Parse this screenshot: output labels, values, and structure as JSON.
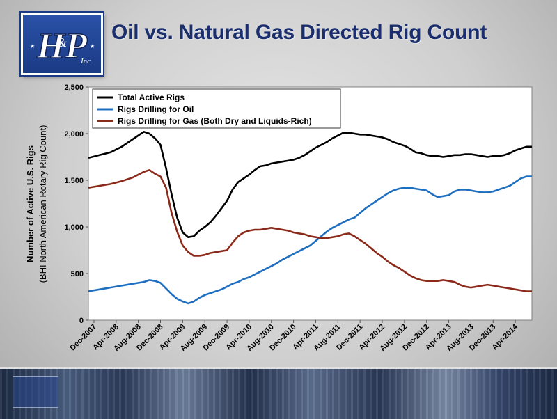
{
  "page": {
    "title": "Oil vs. Natural Gas Directed Rig Count"
  },
  "logo": {
    "text": "H&P Inc"
  },
  "colors": {
    "total": "#000000",
    "oil": "#1f6fc0",
    "gas": "#8b2a1a",
    "title": "#1b2f6e"
  },
  "chart_data": {
    "type": "line",
    "ylabel_line1": "Number of Active U.S. Rigs",
    "ylabel_line2": "(BHI North American Rotary Rig Count)",
    "ylim": [
      0,
      2500
    ],
    "yticks": [
      0,
      500,
      1000,
      1500,
      2000,
      2500
    ],
    "ytick_labels": [
      "0",
      "500",
      "1,000",
      "1,500",
      "2,000",
      "2,500"
    ],
    "x_tick_labels": [
      "Dec-2007",
      "Apr-2008",
      "Aug-2008",
      "Dec-2008",
      "Apr-2009",
      "Aug-2009",
      "Dec-2009",
      "Apr-2010",
      "Aug-2010",
      "Dec-2010",
      "Apr-2011",
      "Aug-2011",
      "Dec-2011",
      "Apr-2012",
      "Aug-2012",
      "Dec-2012",
      "Apr-2013",
      "Aug-2013",
      "Dec-2013",
      "Apr-2014"
    ],
    "xlim": [
      "2007-11",
      "2014-07"
    ],
    "grid": false,
    "legend_position": "top-left",
    "series": [
      {
        "name": "Total Active Rigs",
        "x": [
          "2007-11",
          "2008-01",
          "2008-03",
          "2008-05",
          "2008-07",
          "2008-09",
          "2008-10",
          "2008-11",
          "2008-12",
          "2009-01",
          "2009-02",
          "2009-03",
          "2009-04",
          "2009-05",
          "2009-06",
          "2009-07",
          "2009-08",
          "2009-09",
          "2009-10",
          "2009-11",
          "2009-12",
          "2010-01",
          "2010-02",
          "2010-03",
          "2010-04",
          "2010-05",
          "2010-06",
          "2010-07",
          "2010-08",
          "2010-09",
          "2010-10",
          "2010-11",
          "2010-12",
          "2011-01",
          "2011-02",
          "2011-03",
          "2011-04",
          "2011-05",
          "2011-06",
          "2011-07",
          "2011-08",
          "2011-09",
          "2011-10",
          "2011-11",
          "2011-12",
          "2012-01",
          "2012-02",
          "2012-03",
          "2012-04",
          "2012-05",
          "2012-06",
          "2012-07",
          "2012-08",
          "2012-09",
          "2012-10",
          "2012-11",
          "2012-12",
          "2013-01",
          "2013-02",
          "2013-03",
          "2013-04",
          "2013-05",
          "2013-06",
          "2013-07",
          "2013-08",
          "2013-09",
          "2013-10",
          "2013-11",
          "2013-12",
          "2014-01",
          "2014-02",
          "2014-03",
          "2014-04",
          "2014-05",
          "2014-06",
          "2014-07"
        ],
        "values": [
          1740,
          1770,
          1800,
          1860,
          1940,
          2020,
          2000,
          1950,
          1880,
          1630,
          1350,
          1100,
          940,
          890,
          900,
          960,
          1000,
          1050,
          1120,
          1200,
          1280,
          1400,
          1480,
          1520,
          1560,
          1610,
          1650,
          1660,
          1680,
          1690,
          1700,
          1710,
          1720,
          1740,
          1770,
          1810,
          1850,
          1880,
          1910,
          1950,
          1980,
          2010,
          2010,
          2000,
          1990,
          1990,
          1980,
          1970,
          1960,
          1940,
          1910,
          1890,
          1870,
          1840,
          1800,
          1790,
          1770,
          1760,
          1760,
          1750,
          1760,
          1770,
          1770,
          1780,
          1780,
          1770,
          1760,
          1750,
          1760,
          1760,
          1770,
          1790,
          1820,
          1840,
          1860,
          1860
        ]
      },
      {
        "name": "Rigs Drilling for Oil",
        "x": [
          "2007-11",
          "2008-01",
          "2008-03",
          "2008-05",
          "2008-07",
          "2008-09",
          "2008-10",
          "2008-11",
          "2008-12",
          "2009-01",
          "2009-02",
          "2009-03",
          "2009-04",
          "2009-05",
          "2009-06",
          "2009-07",
          "2009-08",
          "2009-09",
          "2009-10",
          "2009-11",
          "2009-12",
          "2010-01",
          "2010-02",
          "2010-03",
          "2010-04",
          "2010-05",
          "2010-06",
          "2010-07",
          "2010-08",
          "2010-09",
          "2010-10",
          "2010-11",
          "2010-12",
          "2011-01",
          "2011-02",
          "2011-03",
          "2011-04",
          "2011-05",
          "2011-06",
          "2011-07",
          "2011-08",
          "2011-09",
          "2011-10",
          "2011-11",
          "2011-12",
          "2012-01",
          "2012-02",
          "2012-03",
          "2012-04",
          "2012-05",
          "2012-06",
          "2012-07",
          "2012-08",
          "2012-09",
          "2012-10",
          "2012-11",
          "2012-12",
          "2013-01",
          "2013-02",
          "2013-03",
          "2013-04",
          "2013-05",
          "2013-06",
          "2013-07",
          "2013-08",
          "2013-09",
          "2013-10",
          "2013-11",
          "2013-12",
          "2014-01",
          "2014-02",
          "2014-03",
          "2014-04",
          "2014-05",
          "2014-06",
          "2014-07"
        ],
        "values": [
          310,
          330,
          350,
          370,
          390,
          410,
          430,
          420,
          400,
          340,
          280,
          230,
          200,
          180,
          200,
          240,
          270,
          290,
          310,
          330,
          360,
          390,
          410,
          440,
          460,
          490,
          520,
          550,
          580,
          610,
          650,
          680,
          710,
          740,
          770,
          800,
          850,
          900,
          950,
          990,
          1020,
          1050,
          1080,
          1100,
          1150,
          1200,
          1240,
          1280,
          1320,
          1360,
          1390,
          1410,
          1420,
          1420,
          1410,
          1400,
          1390,
          1350,
          1320,
          1330,
          1340,
          1380,
          1400,
          1400,
          1390,
          1380,
          1370,
          1370,
          1380,
          1400,
          1420,
          1440,
          1480,
          1520,
          1540,
          1540
        ]
      },
      {
        "name": "Rigs Drilling for Gas (Both Dry and Liquids-Rich)",
        "x": [
          "2007-11",
          "2008-01",
          "2008-03",
          "2008-05",
          "2008-07",
          "2008-09",
          "2008-10",
          "2008-11",
          "2008-12",
          "2009-01",
          "2009-02",
          "2009-03",
          "2009-04",
          "2009-05",
          "2009-06",
          "2009-07",
          "2009-08",
          "2009-09",
          "2009-10",
          "2009-11",
          "2009-12",
          "2010-01",
          "2010-02",
          "2010-03",
          "2010-04",
          "2010-05",
          "2010-06",
          "2010-07",
          "2010-08",
          "2010-09",
          "2010-10",
          "2010-11",
          "2010-12",
          "2011-01",
          "2011-02",
          "2011-03",
          "2011-04",
          "2011-05",
          "2011-06",
          "2011-07",
          "2011-08",
          "2011-09",
          "2011-10",
          "2011-11",
          "2011-12",
          "2012-01",
          "2012-02",
          "2012-03",
          "2012-04",
          "2012-05",
          "2012-06",
          "2012-07",
          "2012-08",
          "2012-09",
          "2012-10",
          "2012-11",
          "2012-12",
          "2013-01",
          "2013-02",
          "2013-03",
          "2013-04",
          "2013-05",
          "2013-06",
          "2013-07",
          "2013-08",
          "2013-09",
          "2013-10",
          "2013-11",
          "2013-12",
          "2014-01",
          "2014-02",
          "2014-03",
          "2014-04",
          "2014-05",
          "2014-06",
          "2014-07"
        ],
        "values": [
          1420,
          1440,
          1460,
          1490,
          1530,
          1590,
          1610,
          1570,
          1540,
          1420,
          1150,
          950,
          800,
          730,
          690,
          690,
          700,
          720,
          730,
          740,
          750,
          830,
          900,
          940,
          960,
          970,
          970,
          980,
          990,
          980,
          970,
          960,
          940,
          930,
          920,
          900,
          890,
          880,
          880,
          890,
          900,
          920,
          930,
          900,
          860,
          820,
          770,
          720,
          680,
          630,
          590,
          560,
          520,
          480,
          450,
          430,
          420,
          420,
          420,
          430,
          420,
          410,
          380,
          360,
          350,
          360,
          370,
          380,
          370,
          360,
          350,
          340,
          330,
          320,
          310,
          310
        ]
      }
    ]
  }
}
